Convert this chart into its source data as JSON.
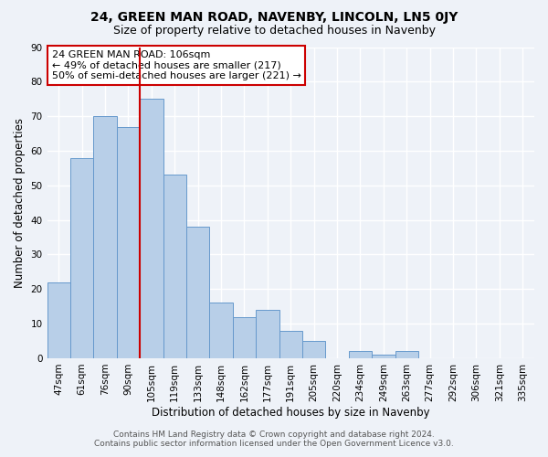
{
  "title": "24, GREEN MAN ROAD, NAVENBY, LINCOLN, LN5 0JY",
  "subtitle": "Size of property relative to detached houses in Navenby",
  "xlabel": "Distribution of detached houses by size in Navenby",
  "ylabel": "Number of detached properties",
  "bar_labels": [
    "47sqm",
    "61sqm",
    "76sqm",
    "90sqm",
    "105sqm",
    "119sqm",
    "133sqm",
    "148sqm",
    "162sqm",
    "177sqm",
    "191sqm",
    "205sqm",
    "220sqm",
    "234sqm",
    "249sqm",
    "263sqm",
    "277sqm",
    "292sqm",
    "306sqm",
    "321sqm",
    "335sqm"
  ],
  "bar_values": [
    22,
    58,
    70,
    67,
    75,
    53,
    38,
    16,
    12,
    14,
    8,
    5,
    0,
    2,
    1,
    2,
    0,
    0,
    0,
    0,
    0
  ],
  "bar_color": "#b8cfe8",
  "bar_edge_color": "#6699cc",
  "vline_color": "#cc0000",
  "vline_position": 4,
  "ylim": [
    0,
    90
  ],
  "yticks": [
    0,
    10,
    20,
    30,
    40,
    50,
    60,
    70,
    80,
    90
  ],
  "annotation_text": "24 GREEN MAN ROAD: 106sqm\n← 49% of detached houses are smaller (217)\n50% of semi-detached houses are larger (221) →",
  "annotation_box_edgecolor": "#cc0000",
  "annotation_box_facecolor": "#ffffff",
  "footer_line1": "Contains HM Land Registry data © Crown copyright and database right 2024.",
  "footer_line2": "Contains public sector information licensed under the Open Government Licence v3.0.",
  "background_color": "#eef2f8",
  "grid_color": "#ffffff",
  "title_fontsize": 10,
  "subtitle_fontsize": 9,
  "axis_label_fontsize": 8.5,
  "tick_fontsize": 7.5,
  "annotation_fontsize": 8,
  "footer_fontsize": 6.5
}
